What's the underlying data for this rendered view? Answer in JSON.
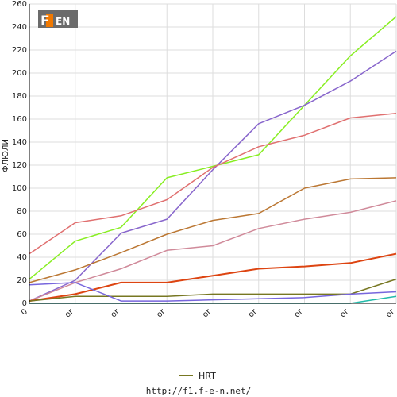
{
  "chart_data": {
    "type": "line",
    "ylabel": "ФЛЮЛИ",
    "ylim": [
      0,
      260
    ],
    "yticks": [
      0,
      20,
      40,
      60,
      80,
      100,
      120,
      140,
      160,
      180,
      200,
      220,
      240,
      260
    ],
    "categories": [
      "0",
      "or",
      "or",
      "or",
      "or",
      "or",
      "or",
      "or",
      "or"
    ],
    "grid": true,
    "legend_position": "bottom",
    "series": [
      {
        "color": "#88ee22",
        "values": [
          21,
          54,
          66,
          109,
          119,
          129,
          172,
          215,
          249
        ]
      },
      {
        "color": "#8866cc",
        "values": [
          2,
          20,
          61,
          73,
          116,
          156,
          172,
          193,
          219
        ]
      },
      {
        "color": "#e07070",
        "values": [
          43,
          70,
          76,
          90,
          118,
          136,
          146,
          161,
          165
        ]
      },
      {
        "color": "#bb7733",
        "values": [
          18,
          29,
          44,
          60,
          72,
          78,
          100,
          108,
          109
        ]
      },
      {
        "color": "#d08a9a",
        "values": [
          2,
          18,
          30,
          46,
          50,
          65,
          73,
          79,
          89
        ]
      },
      {
        "color": "#dd4411",
        "values": [
          2,
          8,
          18,
          18,
          24,
          30,
          32,
          35,
          43
        ]
      },
      {
        "name": "HRT",
        "color": "#777722",
        "values": [
          2,
          6,
          6,
          6,
          8,
          8,
          8,
          8,
          21
        ]
      },
      {
        "color": "#7766dd",
        "values": [
          16,
          18,
          2,
          2,
          3,
          4,
          5,
          8,
          10
        ]
      },
      {
        "color": "#22bbaa",
        "values": [
          0,
          0,
          0,
          0,
          0,
          0,
          0,
          0,
          6
        ]
      }
    ]
  },
  "legend": {
    "label": "HRT",
    "color": "#777722"
  },
  "source": "http://f1.f-e-n.net/",
  "logo": {
    "text": "F1FEN"
  }
}
